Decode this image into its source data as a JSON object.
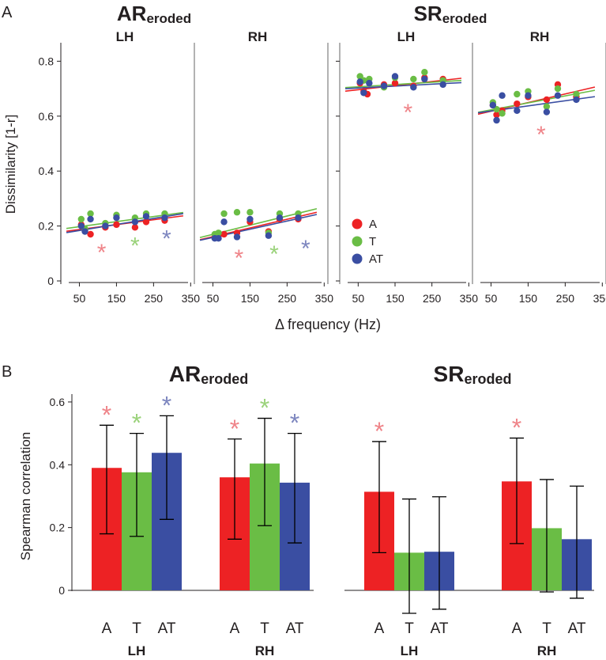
{
  "colors": {
    "A": "#ed2224",
    "T": "#6abd45",
    "AT": "#3a4ea2",
    "A_star": "#ef8489",
    "T_star": "#9ad27a",
    "AT_star": "#7d86bf",
    "axis": "#231f20"
  },
  "panel_letters": {
    "a": "A",
    "b": "B"
  },
  "group_titles": {
    "ar_main": "AR",
    "ar_sub": "eroded",
    "sr_main": "SR",
    "sr_sub": "eroded"
  },
  "hemispheres": {
    "lh": "LH",
    "rh": "RH"
  },
  "legend": [
    "A",
    "T",
    "AT"
  ],
  "star_symbol": "*",
  "chart_data": [
    {
      "type": "scatter",
      "panel": "A",
      "ylabel": "Dissimilarity [1-r]",
      "xlabel": "Δ frequency (Hz)",
      "xlim": [
        0,
        360
      ],
      "ylim": [
        0,
        0.85
      ],
      "xticks": [
        50,
        150,
        250,
        350
      ],
      "xtick_labels": [
        "50",
        "150",
        "250",
        "350"
      ],
      "yticks": [
        0,
        0.2,
        0.4,
        0.6,
        0.8
      ],
      "ytick_labels": [
        "0",
        "0.2",
        "0.4",
        "0.6",
        "0.8"
      ],
      "subplots": [
        {
          "group": "AR",
          "hemisphere": "LH",
          "points": {
            "A": [
              [
                55,
                0.205
              ],
              [
                65,
                0.185
              ],
              [
                80,
                0.17
              ],
              [
                120,
                0.195
              ],
              [
                150,
                0.205
              ],
              [
                200,
                0.195
              ],
              [
                230,
                0.215
              ],
              [
                280,
                0.22
              ]
            ],
            "T": [
              [
                55,
                0.225
              ],
              [
                65,
                0.19
              ],
              [
                80,
                0.245
              ],
              [
                120,
                0.21
              ],
              [
                150,
                0.24
              ],
              [
                200,
                0.23
              ],
              [
                230,
                0.245
              ],
              [
                280,
                0.245
              ]
            ],
            "AT": [
              [
                55,
                0.2
              ],
              [
                65,
                0.18
              ],
              [
                80,
                0.225
              ],
              [
                120,
                0.2
              ],
              [
                150,
                0.23
              ],
              [
                200,
                0.215
              ],
              [
                230,
                0.235
              ],
              [
                280,
                0.23
              ]
            ]
          },
          "fit": {
            "A": [
              0.181,
              0.237
            ],
            "T": [
              0.191,
              0.249
            ],
            "AT": [
              0.176,
              0.245
            ]
          },
          "stars": [
            {
              "series": "A",
              "x": 110,
              "y": 0.115
            },
            {
              "series": "T",
              "x": 200,
              "y": 0.14
            },
            {
              "series": "AT",
              "x": 285,
              "y": 0.165
            }
          ]
        },
        {
          "group": "AR",
          "hemisphere": "RH",
          "points": {
            "A": [
              [
                55,
                0.16
              ],
              [
                65,
                0.165
              ],
              [
                80,
                0.17
              ],
              [
                115,
                0.175
              ],
              [
                150,
                0.215
              ],
              [
                200,
                0.18
              ],
              [
                230,
                0.225
              ],
              [
                280,
                0.225
              ]
            ],
            "T": [
              [
                55,
                0.17
              ],
              [
                65,
                0.175
              ],
              [
                80,
                0.245
              ],
              [
                115,
                0.25
              ],
              [
                150,
                0.25
              ],
              [
                200,
                0.175
              ],
              [
                230,
                0.245
              ],
              [
                280,
                0.245
              ]
            ],
            "AT": [
              [
                55,
                0.155
              ],
              [
                65,
                0.155
              ],
              [
                80,
                0.215
              ],
              [
                115,
                0.16
              ],
              [
                150,
                0.225
              ],
              [
                200,
                0.165
              ],
              [
                230,
                0.23
              ],
              [
                280,
                0.23
              ]
            ]
          },
          "fit": {
            "A": [
              0.15,
              0.25
            ],
            "T": [
              0.158,
              0.263
            ],
            "AT": [
              0.148,
              0.242
            ]
          },
          "stars": [
            {
              "series": "A",
              "x": 120,
              "y": 0.095
            },
            {
              "series": "T",
              "x": 215,
              "y": 0.11
            },
            {
              "series": "AT",
              "x": 300,
              "y": 0.13
            }
          ]
        },
        {
          "group": "SR",
          "hemisphere": "LH",
          "points": {
            "A": [
              [
                55,
                0.72
              ],
              [
                65,
                0.69
              ],
              [
                75,
                0.68
              ],
              [
                120,
                0.715
              ],
              [
                150,
                0.72
              ],
              [
                200,
                0.71
              ],
              [
                230,
                0.74
              ],
              [
                280,
                0.735
              ]
            ],
            "T": [
              [
                55,
                0.745
              ],
              [
                65,
                0.73
              ],
              [
                80,
                0.735
              ],
              [
                120,
                0.705
              ],
              [
                150,
                0.74
              ],
              [
                200,
                0.735
              ],
              [
                230,
                0.76
              ],
              [
                280,
                0.73
              ]
            ],
            "AT": [
              [
                55,
                0.725
              ],
              [
                65,
                0.685
              ],
              [
                80,
                0.72
              ],
              [
                120,
                0.71
              ],
              [
                150,
                0.745
              ],
              [
                200,
                0.705
              ],
              [
                230,
                0.735
              ],
              [
                280,
                0.715
              ]
            ]
          },
          "fit": {
            "A": [
              0.691,
              0.738
            ],
            "T": [
              0.704,
              0.73
            ],
            "AT": [
              0.7,
              0.722
            ]
          },
          "stars": [
            {
              "series": "A",
              "x": 185,
              "y": 0.625
            }
          ]
        },
        {
          "group": "SR",
          "hemisphere": "RH",
          "points": {
            "A": [
              [
                55,
                0.64
              ],
              [
                65,
                0.605
              ],
              [
                80,
                0.62
              ],
              [
                120,
                0.645
              ],
              [
                150,
                0.67
              ],
              [
                200,
                0.66
              ],
              [
                230,
                0.715
              ],
              [
                280,
                0.67
              ]
            ],
            "T": [
              [
                55,
                0.65
              ],
              [
                65,
                0.625
              ],
              [
                80,
                0.61
              ],
              [
                120,
                0.68
              ],
              [
                150,
                0.69
              ],
              [
                200,
                0.635
              ],
              [
                230,
                0.7
              ],
              [
                280,
                0.68
              ]
            ],
            "AT": [
              [
                55,
                0.64
              ],
              [
                65,
                0.585
              ],
              [
                80,
                0.675
              ],
              [
                120,
                0.62
              ],
              [
                150,
                0.675
              ],
              [
                200,
                0.615
              ],
              [
                230,
                0.675
              ],
              [
                280,
                0.66
              ]
            ]
          },
          "fit": {
            "A": [
              0.607,
              0.706
            ],
            "T": [
              0.614,
              0.694
            ],
            "AT": [
              0.612,
              0.671
            ]
          },
          "stars": [
            {
              "series": "A",
              "x": 185,
              "y": 0.545
            }
          ]
        }
      ]
    },
    {
      "type": "bar",
      "panel": "B",
      "ylabel": "Spearman correlation",
      "ylim": [
        0,
        0.62
      ],
      "yticks": [
        0,
        0.2,
        0.4,
        0.6
      ],
      "ytick_labels": [
        "0",
        "0.2",
        "0.4",
        "0.6"
      ],
      "categories": [
        "A",
        "T",
        "AT"
      ],
      "groups": [
        {
          "group": "AR",
          "hemisphere": "LH",
          "values": [
            0.39,
            0.376,
            0.438
          ],
          "err_low": [
            0.18,
            0.172,
            0.226
          ],
          "err_high": [
            0.526,
            0.5,
            0.556
          ],
          "stars": [
            true,
            true,
            true
          ]
        },
        {
          "group": "AR",
          "hemisphere": "RH",
          "values": [
            0.36,
            0.404,
            0.343
          ],
          "err_low": [
            0.163,
            0.206,
            0.151
          ],
          "err_high": [
            0.482,
            0.548,
            0.5
          ],
          "stars": [
            true,
            true,
            true
          ]
        },
        {
          "group": "SR",
          "hemisphere": "LH",
          "values": [
            0.314,
            0.12,
            0.123
          ],
          "err_low": [
            0.12,
            -0.073,
            -0.06
          ],
          "err_high": [
            0.474,
            0.291,
            0.298
          ],
          "stars": [
            true,
            false,
            false
          ]
        },
        {
          "group": "SR",
          "hemisphere": "RH",
          "values": [
            0.347,
            0.198,
            0.163
          ],
          "err_low": [
            0.149,
            -0.005,
            -0.025
          ],
          "err_high": [
            0.485,
            0.353,
            0.332
          ],
          "stars": [
            true,
            false,
            false
          ]
        }
      ]
    }
  ]
}
